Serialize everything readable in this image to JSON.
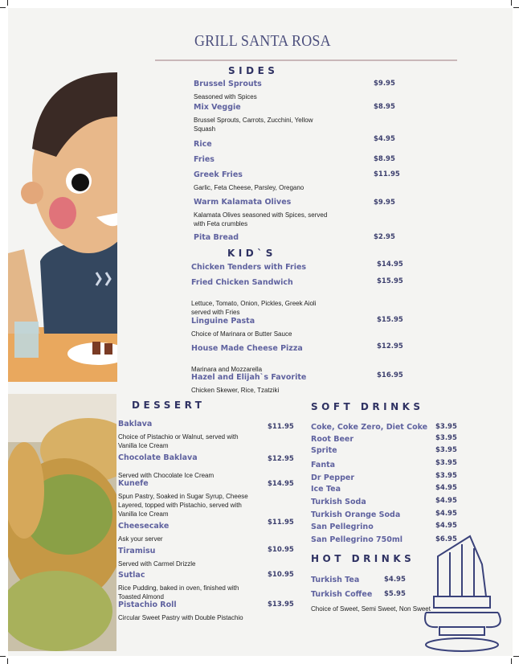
{
  "title": "GRILL SANTA ROSA",
  "colors": {
    "item": "#5f629f",
    "heading": "#2f3263",
    "title": "#4c4f7d",
    "background": "#f4f4f2"
  },
  "sides": {
    "heading": "SIDES",
    "items": [
      {
        "name": "Brussel Sprouts",
        "desc": "Seasoned with Spices",
        "price": "$9.95"
      },
      {
        "name": "Mix Veggie",
        "desc": "Brussel Sprouts, Carrots, Zucchini, Yellow Squash",
        "price": "$8.95"
      },
      {
        "name": "Rice",
        "desc": "",
        "price": "$4.95"
      },
      {
        "name": "Fries",
        "desc": "",
        "price": "$8.95"
      },
      {
        "name": "Greek Fries",
        "desc": "Garlic, Feta Cheese, Parsley, Oregano",
        "price": "$11.95"
      },
      {
        "name": "Warm Kalamata Olives",
        "desc": "Kalamata Olives seasoned with Spices, served with Feta crumbles",
        "price": "$9.95"
      },
      {
        "name": "Pita Bread",
        "desc": "",
        "price": "$2.95"
      }
    ]
  },
  "kids": {
    "heading": "KID`S",
    "items": [
      {
        "name": "Chicken Tenders with Fries",
        "desc": "",
        "price": "$14.95"
      },
      {
        "name": "Fried Chicken Sandwich",
        "desc": "Lettuce, Tomato, Onion, Pickles, Greek Aioli served with Fries",
        "price": "$15.95"
      },
      {
        "name": "Linguine Pasta",
        "desc": "Choice of Marinara or Butter Sauce",
        "price": "$15.95"
      },
      {
        "name": "House Made Cheese Pizza",
        "desc": "Marinara and Mozzarella",
        "price": "$12.95"
      },
      {
        "name": "Hazel and Elijah`s Favorite",
        "desc": "Chicken Skewer, Rice, Tzatziki",
        "price": "$16.95"
      }
    ]
  },
  "dessert": {
    "heading": "DESSERT",
    "items": [
      {
        "name": "Baklava",
        "desc": "Choice of Pistachio or Walnut, served with Vanilla Ice Cream",
        "price": "$11.95"
      },
      {
        "name": "Chocolate Baklava",
        "desc": "Served with Chocolate Ice Cream",
        "price": "$12.95"
      },
      {
        "name": "Kunefe",
        "desc": "Spun Pastry, Soaked in Sugar Syrup, Cheese Layered, topped with Pistachio, served with Vanilla Ice Cream",
        "price": "$14.95"
      },
      {
        "name": "Cheesecake",
        "desc": "Ask your server",
        "price": "$11.95"
      },
      {
        "name": "Tiramisu",
        "desc": "Served with Carmel Drizzle",
        "price": "$10.95"
      },
      {
        "name": "Sutlac",
        "desc": "Rice Pudding, baked in oven, finished with Toasted Almond",
        "price": "$10.95"
      },
      {
        "name": "Pistachio Roll",
        "desc": "Circular Sweet Pastry with Double Pistachio",
        "price": "$13.95"
      }
    ]
  },
  "soft_drinks": {
    "heading": "SOFT DRINKS",
    "items": [
      {
        "name": "Coke, Coke Zero, Diet Coke",
        "price": "$3.95"
      },
      {
        "name": "Root Beer",
        "price": "$3.95"
      },
      {
        "name": "Sprite",
        "price": "$3.95"
      },
      {
        "name": "Fanta",
        "price": "$3.95"
      },
      {
        "name": "Dr Pepper",
        "price": "$3.95"
      },
      {
        "name": "Ice Tea",
        "price": "$4.95"
      },
      {
        "name": "Turkish Soda",
        "price": "$4.95"
      },
      {
        "name": "Turkish Orange Soda",
        "price": "$4.95"
      },
      {
        "name": "San Pellegrino",
        "price": "$4.95"
      },
      {
        "name": "San Pellegrino 750ml",
        "price": "$6.95"
      }
    ]
  },
  "hot_drinks": {
    "heading": "HOT DRINKS",
    "items": [
      {
        "name": "Turkish Tea",
        "price": "$4.95"
      },
      {
        "name": "Turkish Coffee",
        "price": "$5.95"
      }
    ],
    "note": "Choice of Sweet, Semi Sweet, Non Sweet"
  }
}
